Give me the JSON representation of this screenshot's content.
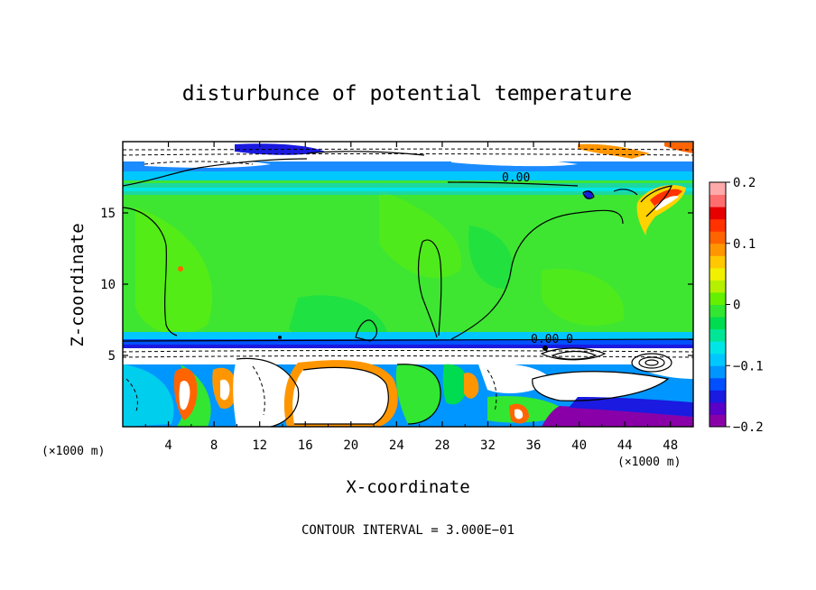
{
  "chart_data": {
    "type": "heatmap",
    "title": "disturbunce of potential temperature",
    "xlabel": "X-coordinate",
    "ylabel": "Z-coordinate",
    "x_unit": "(×1000 m)",
    "z_unit": "(×1000 m)",
    "xlim": [
      0,
      50
    ],
    "ylim": [
      0,
      20
    ],
    "x_ticks": [
      "4",
      "8",
      "12",
      "16",
      "20",
      "24",
      "28",
      "32",
      "36",
      "40",
      "44",
      "48"
    ],
    "x_tick_values": [
      4,
      8,
      12,
      16,
      20,
      24,
      28,
      32,
      36,
      40,
      44,
      48
    ],
    "y_ticks": [
      "5",
      "10",
      "15"
    ],
    "y_tick_values": [
      5,
      10,
      15
    ],
    "colorbar": {
      "range": [
        -0.2,
        0.2
      ],
      "tick_labels": [
        "0.2",
        "0.1",
        "0",
        "−0.1",
        "−0.2"
      ],
      "tick_values": [
        0.2,
        0.1,
        0,
        -0.1,
        -0.2
      ],
      "colors": [
        "#8a00a8",
        "#5a00c8",
        "#1a1ae0",
        "#0050ff",
        "#0096ff",
        "#00c8ff",
        "#00e6e6",
        "#00e696",
        "#00dc50",
        "#32e632",
        "#64f000",
        "#b4f000",
        "#f0f000",
        "#ffc800",
        "#ff9600",
        "#ff6400",
        "#ff3200",
        "#e60000",
        "#ff6e6e",
        "#ffaaaa"
      ]
    },
    "contour_labels": [
      "0.00",
      "0.00–0"
    ],
    "contour_interval": "CONTOUR INTERVAL = 3.000E−01",
    "approx_fields": [
      {
        "region": "z 6–17 km (upper troposphere)",
        "value": 0.0
      },
      {
        "region": "z 16–17 km band",
        "value": -0.05
      },
      {
        "region": "z 5.2–5.8 km layer",
        "value": -0.15
      },
      {
        "region": "z 0–5 km (lower)",
        "value": -0.1
      }
    ]
  }
}
